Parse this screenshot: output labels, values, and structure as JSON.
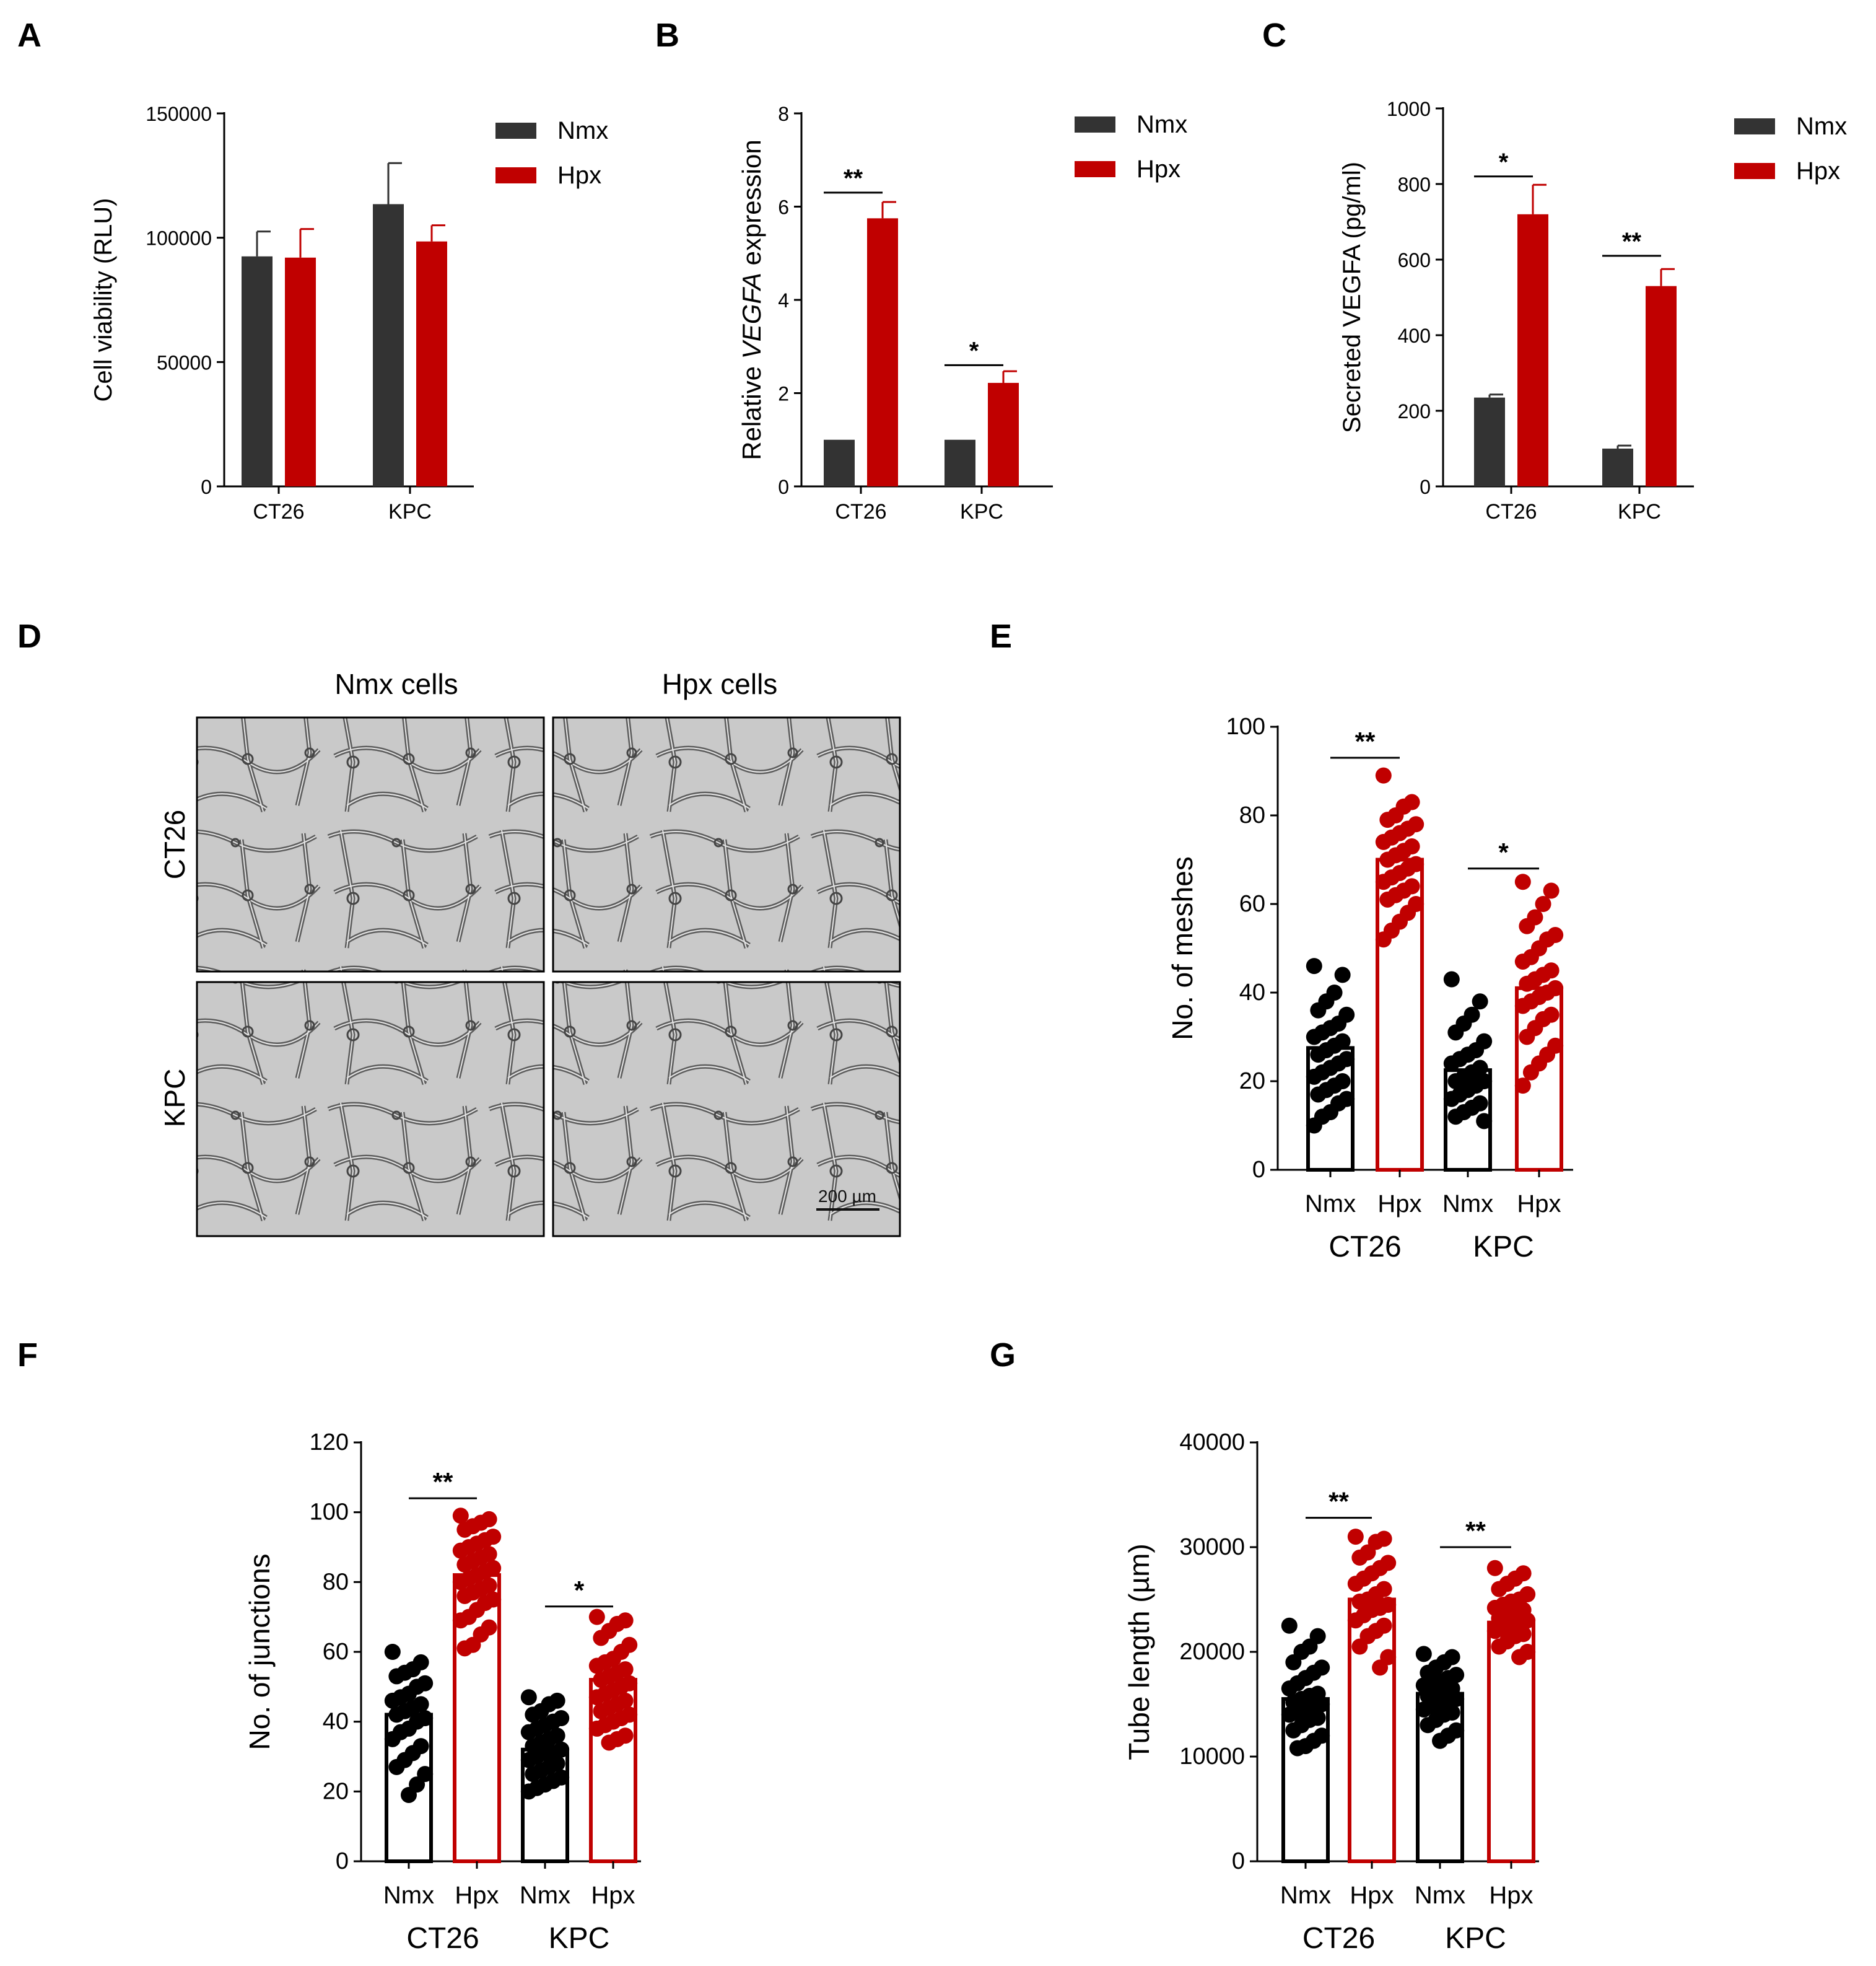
{
  "colors": {
    "nmx": "#333333",
    "hpx": "#C00000",
    "black": "#000000"
  },
  "panels": [
    {
      "letter": "A"
    },
    {
      "letter": "B"
    },
    {
      "letter": "C"
    },
    {
      "letter": "D"
    },
    {
      "letter": "E"
    },
    {
      "letter": "F"
    },
    {
      "letter": "G"
    }
  ],
  "chart_data": [
    {
      "id": "A",
      "type": "bar",
      "categories": [
        "CT26",
        "KPC"
      ],
      "series": [
        {
          "name": "Nmx",
          "values": [
            92500,
            113500
          ],
          "errors": [
            10000,
            16500
          ]
        },
        {
          "name": "Hpx",
          "values": [
            92000,
            98500
          ],
          "errors": [
            11500,
            6500
          ]
        }
      ],
      "ylabel": "Cell viability (RLU)",
      "ylim": [
        0,
        150000
      ],
      "yticks": [
        0,
        50000,
        100000,
        150000
      ],
      "ytick_labels": [
        "0",
        "50000",
        "100000",
        "150000"
      ],
      "legend": [
        "Nmx",
        "Hpx"
      ],
      "significance": []
    },
    {
      "id": "B",
      "type": "bar",
      "categories": [
        "CT26",
        "KPC"
      ],
      "series": [
        {
          "name": "Nmx",
          "values": [
            1.0,
            1.0
          ],
          "errors": [
            0,
            0
          ]
        },
        {
          "name": "Hpx",
          "values": [
            5.75,
            2.22
          ],
          "errors": [
            0.35,
            0.25
          ]
        }
      ],
      "ylabel_parts": [
        "Relative ",
        "VEGFA",
        " expression"
      ],
      "ylim": [
        0,
        8
      ],
      "yticks": [
        0,
        2,
        4,
        6,
        8
      ],
      "ytick_labels": [
        "0",
        "2",
        "4",
        "6",
        "8"
      ],
      "legend": [
        "Nmx",
        "Hpx"
      ],
      "significance": [
        {
          "category": 0,
          "label": "**",
          "y": 6.3
        },
        {
          "category": 1,
          "label": "*",
          "y": 2.6
        }
      ]
    },
    {
      "id": "C",
      "type": "bar",
      "categories": [
        "CT26",
        "KPC"
      ],
      "series": [
        {
          "name": "Nmx",
          "values": [
            235,
            100
          ],
          "errors": [
            8,
            8
          ]
        },
        {
          "name": "Hpx",
          "values": [
            720,
            530
          ],
          "errors": [
            78,
            45
          ]
        }
      ],
      "ylabel": "Secreted VEGFA (pg/ml)",
      "ylim": [
        0,
        1000
      ],
      "yticks": [
        0,
        200,
        400,
        600,
        800,
        1000
      ],
      "ytick_labels": [
        "0",
        "200",
        "400",
        "600",
        "800",
        "1000"
      ],
      "legend": [
        "Nmx",
        "Hpx"
      ],
      "significance": [
        {
          "category": 0,
          "label": "*",
          "y": 820
        },
        {
          "category": 1,
          "label": "**",
          "y": 610
        }
      ]
    },
    {
      "id": "E",
      "type": "scatter",
      "groups": [
        "Nmx",
        "Hpx",
        "Nmx",
        "Hpx"
      ],
      "group_colors": [
        "#000000",
        "#C00000",
        "#000000",
        "#C00000"
      ],
      "cell_lines": [
        "CT26",
        "KPC"
      ],
      "means": [
        27.5,
        70,
        22.5,
        41
      ],
      "points": [
        [
          46,
          44,
          40,
          38,
          36,
          35,
          33,
          32,
          31,
          30,
          29,
          28,
          27,
          26,
          25,
          24,
          23,
          22,
          21,
          20,
          19,
          18,
          17,
          16,
          15,
          13,
          12,
          10
        ],
        [
          89,
          83,
          82,
          80,
          79,
          78,
          77,
          76,
          75,
          74,
          73,
          72,
          71,
          70,
          69,
          68,
          67,
          66,
          65,
          64,
          63,
          62,
          61,
          60,
          58,
          56,
          54,
          52
        ],
        [
          43,
          38,
          35,
          33,
          31,
          29,
          27,
          26,
          25,
          24,
          23,
          22,
          21,
          20,
          20,
          19,
          18,
          17,
          16,
          15,
          14,
          13,
          12,
          11
        ],
        [
          65,
          63,
          60,
          57,
          55,
          53,
          52,
          50,
          48,
          47,
          45,
          44,
          43,
          42,
          41,
          40,
          39,
          38,
          37,
          35,
          34,
          32,
          30,
          28,
          26,
          24,
          22,
          19
        ]
      ],
      "ylabel": "No. of meshes",
      "ylim": [
        0,
        100
      ],
      "yticks": [
        0,
        20,
        40,
        60,
        80,
        100
      ],
      "ytick_labels": [
        "0",
        "20",
        "40",
        "60",
        "80",
        "100"
      ],
      "significance": [
        {
          "pair": [
            0,
            1
          ],
          "label": "**",
          "y": 93
        },
        {
          "pair": [
            2,
            3
          ],
          "label": "*",
          "y": 68
        }
      ]
    },
    {
      "id": "F",
      "type": "scatter",
      "groups": [
        "Nmx",
        "Hpx",
        "Nmx",
        "Hpx"
      ],
      "group_colors": [
        "#000000",
        "#C00000",
        "#000000",
        "#C00000"
      ],
      "cell_lines": [
        "CT26",
        "KPC"
      ],
      "means": [
        42,
        82,
        32,
        52
      ],
      "points": [
        [
          60,
          57,
          55,
          54,
          53,
          51,
          50,
          48,
          47,
          46,
          45,
          44,
          43,
          42,
          41,
          40,
          38,
          37,
          35,
          33,
          31,
          29,
          27,
          25,
          22,
          19
        ],
        [
          99,
          98,
          97,
          96,
          95,
          93,
          92,
          91,
          90,
          89,
          88,
          87,
          86,
          85,
          84,
          83,
          82,
          81,
          80,
          79,
          78,
          77,
          76,
          75,
          74,
          72,
          70,
          69,
          67,
          65,
          62,
          61
        ],
        [
          47,
          46,
          45,
          43,
          42,
          41,
          40,
          39,
          38,
          37,
          36,
          35,
          34,
          33,
          32,
          31,
          31,
          30,
          29,
          28,
          27,
          26,
          25,
          24,
          23,
          22,
          21,
          20
        ],
        [
          70,
          69,
          68,
          66,
          64,
          62,
          60,
          58,
          57,
          56,
          55,
          54,
          53,
          52,
          51,
          50,
          49,
          48,
          47,
          46,
          45,
          44,
          43,
          42,
          41,
          40,
          39,
          38,
          36,
          35,
          34
        ]
      ],
      "ylabel": "No. of junctions",
      "ylim": [
        0,
        120
      ],
      "yticks": [
        0,
        20,
        40,
        60,
        80,
        100,
        120
      ],
      "ytick_labels": [
        "0",
        "20",
        "40",
        "60",
        "80",
        "100",
        "120"
      ],
      "significance": [
        {
          "pair": [
            0,
            1
          ],
          "label": "**",
          "y": 104
        },
        {
          "pair": [
            2,
            3
          ],
          "label": "*",
          "y": 73
        }
      ]
    },
    {
      "id": "G",
      "type": "scatter",
      "groups": [
        "Nmx",
        "Hpx",
        "Nmx",
        "Hpx"
      ],
      "group_colors": [
        "#000000",
        "#C00000",
        "#000000",
        "#C00000"
      ],
      "cell_lines": [
        "CT26",
        "KPC"
      ],
      "means": [
        15500,
        25000,
        16000,
        22800
      ],
      "points": [
        [
          22500,
          21500,
          20500,
          20000,
          19000,
          18500,
          18000,
          17500,
          17000,
          16500,
          16000,
          15800,
          15500,
          15200,
          15000,
          14700,
          14500,
          14200,
          14000,
          13700,
          13500,
          13000,
          12500,
          12000,
          11500,
          11000,
          10800
        ],
        [
          31000,
          30800,
          30500,
          29500,
          29000,
          28500,
          28000,
          27500,
          27000,
          26500,
          26000,
          25500,
          25000,
          24800,
          24500,
          24200,
          24000,
          23500,
          23000,
          22500,
          22000,
          21500,
          20500,
          19500,
          18500
        ],
        [
          19800,
          19500,
          19000,
          18500,
          18000,
          17800,
          17500,
          17200,
          17000,
          16800,
          16500,
          16200,
          16000,
          15800,
          15500,
          15200,
          15000,
          14800,
          14500,
          14200,
          14000,
          13500,
          13000,
          12500,
          12000,
          11500
        ],
        [
          28000,
          27500,
          27000,
          26500,
          26000,
          25500,
          25000,
          24800,
          24500,
          24200,
          24000,
          23700,
          23500,
          23200,
          23000,
          22700,
          22500,
          22200,
          22000,
          21700,
          21500,
          21000,
          20500,
          20000,
          19500
        ]
      ],
      "ylabel": "Tube length (µm)",
      "ylim": [
        0,
        40000
      ],
      "yticks": [
        0,
        10000,
        20000,
        30000,
        40000
      ],
      "ytick_labels": [
        "0",
        "10000",
        "20000",
        "30000",
        "40000"
      ],
      "significance": [
        {
          "pair": [
            0,
            1
          ],
          "label": "**",
          "y": 32800
        },
        {
          "pair": [
            2,
            3
          ],
          "label": "**",
          "y": 30000
        }
      ]
    }
  ],
  "micrographs": {
    "column_labels": [
      "Nmx cells",
      "Hpx cells"
    ],
    "row_labels": [
      "CT26",
      "KPC"
    ],
    "scale_bar": "200 µm"
  }
}
